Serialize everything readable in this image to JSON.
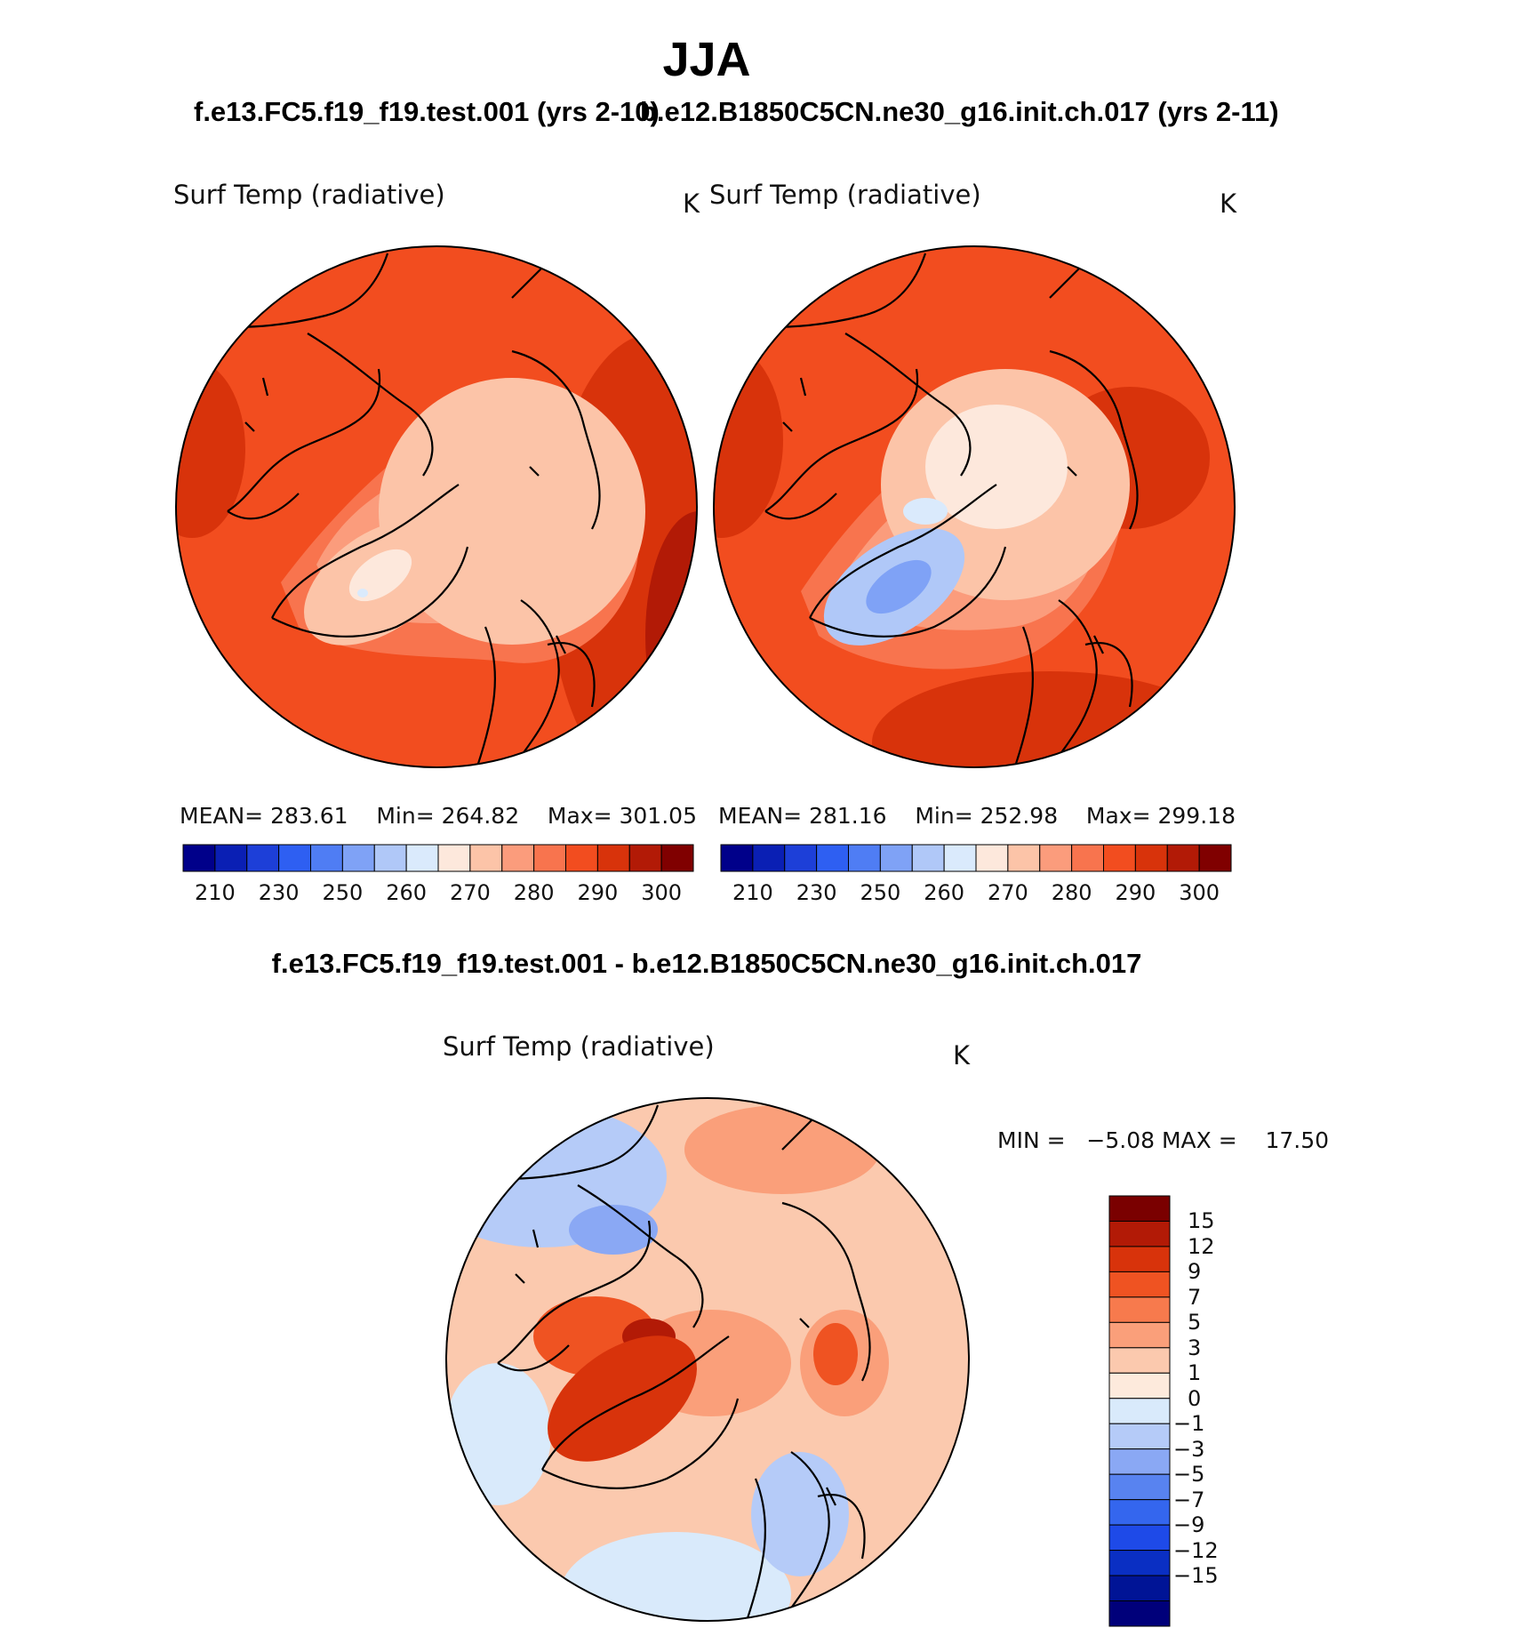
{
  "title": "JJA",
  "subtitle_left": "f.e13.FC5.f19_f19.test.001 (yrs 2-10)",
  "subtitle_right": "b.e12.B1850C5CN.ne30_g16.init.ch.017 (yrs 2-11)",
  "diff_title": "f.e13.FC5.f19_f19.test.001 - b.e12.B1850C5CN.ne30_g16.init.ch.017",
  "colors": {
    "abs_scale": [
      "#00008a",
      "#0a1fb4",
      "#1d3fd8",
      "#2e5ff2",
      "#4f7df4",
      "#7fa2f6",
      "#b0c8f8",
      "#daeafc",
      "#fde8dc",
      "#fcc4a8",
      "#fb9c7c",
      "#f8744e",
      "#f24d1f",
      "#d8330b",
      "#b21a06",
      "#800000"
    ],
    "diff_scale": [
      "#00007a",
      "#001496",
      "#0a2fc3",
      "#1e4ae8",
      "#3466ee",
      "#5883f0",
      "#8aa8f4",
      "#b5cbf8",
      "#d9eafb",
      "#fdeadc",
      "#fbc9ae",
      "#fa9f7a",
      "#f77a4d",
      "#ef5322",
      "#d8330b",
      "#b21a06",
      "#7a0000"
    ]
  },
  "chart_data": [
    {
      "type": "heatmap",
      "projection": "north-polar-stereographic",
      "title": "Surf Temp (radiative)",
      "units": "K",
      "stats": {
        "mean_label": "MEAN=",
        "mean": "283.61",
        "min_label": "Min=",
        "min": "264.82",
        "max_label": "Max=",
        "max": "301.05"
      },
      "colorbar_ticks": [
        "210",
        "230",
        "250",
        "260",
        "270",
        "280",
        "290",
        "300"
      ],
      "colorbar_orientation": "horizontal"
    },
    {
      "type": "heatmap",
      "projection": "north-polar-stereographic",
      "title": "Surf Temp (radiative)",
      "units": "K",
      "stats": {
        "mean_label": "MEAN=",
        "mean": "281.16",
        "min_label": "Min=",
        "min": "252.98",
        "max_label": "Max=",
        "max": "299.18"
      },
      "colorbar_ticks": [
        "210",
        "230",
        "250",
        "260",
        "270",
        "280",
        "290",
        "300"
      ],
      "colorbar_orientation": "horizontal"
    },
    {
      "type": "heatmap",
      "projection": "north-polar-stereographic",
      "title": "Surf Temp (radiative)",
      "units": "K",
      "stats": {
        "min_label": "MIN =",
        "min": "−5.08",
        "max_label": "MAX =",
        "max": "17.50"
      },
      "colorbar_ticks": [
        "15",
        "12",
        "9",
        "7",
        "5",
        "3",
        "1",
        "0",
        "−1",
        "−3",
        "−5",
        "−7",
        "−9",
        "−12",
        "−15"
      ],
      "colorbar_orientation": "vertical"
    }
  ]
}
